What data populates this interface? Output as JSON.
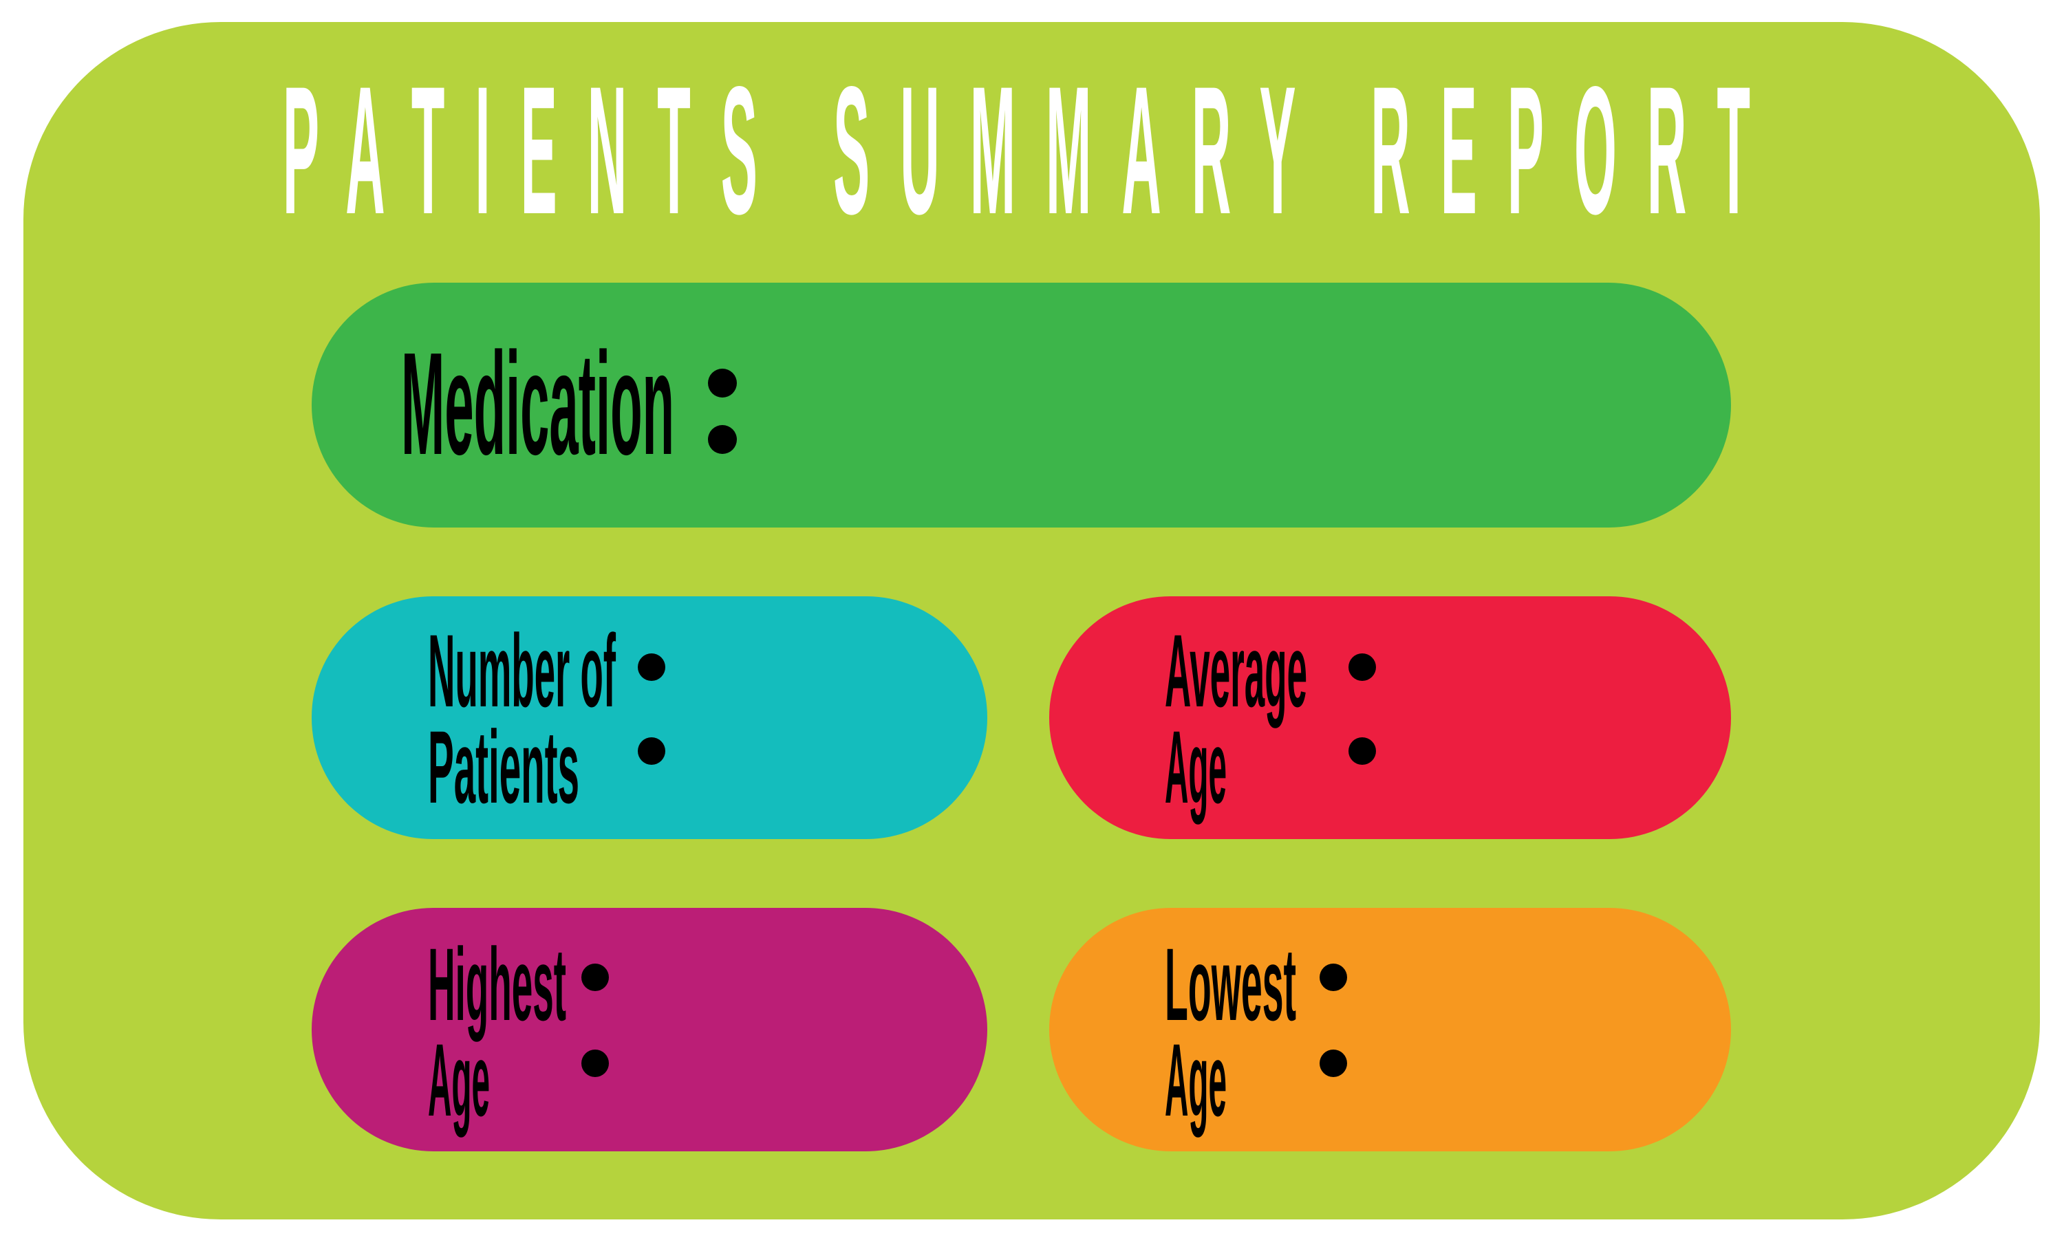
{
  "title": "PATIENTS SUMMARY REPORT",
  "cards": {
    "medication": {
      "label": "Medication",
      "value": ""
    },
    "patients": {
      "line1": "Number of",
      "line2": "Patients",
      "value": ""
    },
    "average_age": {
      "line1": "Average",
      "line2": "Age",
      "value": ""
    },
    "highest_age": {
      "line1": "Highest",
      "line2": "Age",
      "value": ""
    },
    "lowest_age": {
      "line1": "Lowest",
      "line2": "Age",
      "value": ""
    }
  },
  "colors": {
    "background": "#b5d33d",
    "medication": "#3db54a",
    "patients": "#14bdbd",
    "average_age": "#ed1e40",
    "highest_age": "#bb1e76",
    "lowest_age": "#f7981f"
  }
}
